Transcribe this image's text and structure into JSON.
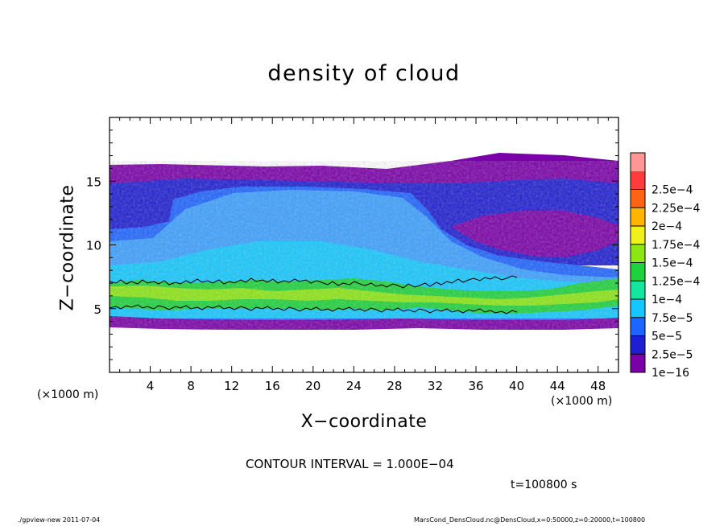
{
  "chart_data": {
    "type": "heatmap",
    "title": "density of cloud",
    "xlabel": "X−coordinate",
    "ylabel": "Z−coordinate",
    "x_unit": "(×1000 m)",
    "z_unit": "(×1000 m)",
    "xlim": [
      0,
      50
    ],
    "ylim": [
      0,
      20
    ],
    "x_ticks": [
      4,
      8,
      12,
      16,
      20,
      24,
      28,
      32,
      36,
      40,
      44,
      48
    ],
    "y_ticks": [
      5,
      10,
      15
    ],
    "colorbar": {
      "labels": [
        "1e−16",
        "2.5e−5",
        "5e−5",
        "7.5e−5",
        "1e−4",
        "1.25e−4",
        "1.5e−4",
        "1.75e−4",
        "2e−4",
        "2.25e−4",
        "2.5e−4"
      ],
      "colors": [
        "#7a00a8",
        "#1e1ed2",
        "#1e64ff",
        "#14c8ff",
        "#14e6a0",
        "#1ed23c",
        "#8ce614",
        "#f0f01e",
        "#ffb400",
        "#ff6414",
        "#ff3c3c",
        "#ff9696"
      ]
    },
    "profile_by_z": [
      {
        "z_range": [
          16.2,
          20
        ],
        "level": "none"
      },
      {
        "z_range": [
          15.5,
          16.2
        ],
        "level": "1e−16"
      },
      {
        "z_range": [
          12,
          15.5
        ],
        "level": "2.5e−5 to 5e−5"
      },
      {
        "z_range": [
          7,
          12
        ],
        "level": "5e−5 to 7.5e−5"
      },
      {
        "z_range": [
          5,
          7
        ],
        "level": "1e−4 to 1.5e−4"
      },
      {
        "z_range": [
          4.2,
          5
        ],
        "level": "7.5e−5"
      },
      {
        "z_range": [
          3.5,
          4.2
        ],
        "level": "1e−16"
      },
      {
        "z_range": [
          0,
          3.5
        ],
        "level": "none"
      }
    ],
    "contour_interval": "CONTOUR INTERVAL = 1.000E−04",
    "time": "t=100800 s"
  },
  "footer": {
    "left": "./gpview-new  2011-07-04",
    "right": "MarsCond_DensCloud.nc@DensCloud,x=0:50000,z=0:20000,t=100800"
  }
}
